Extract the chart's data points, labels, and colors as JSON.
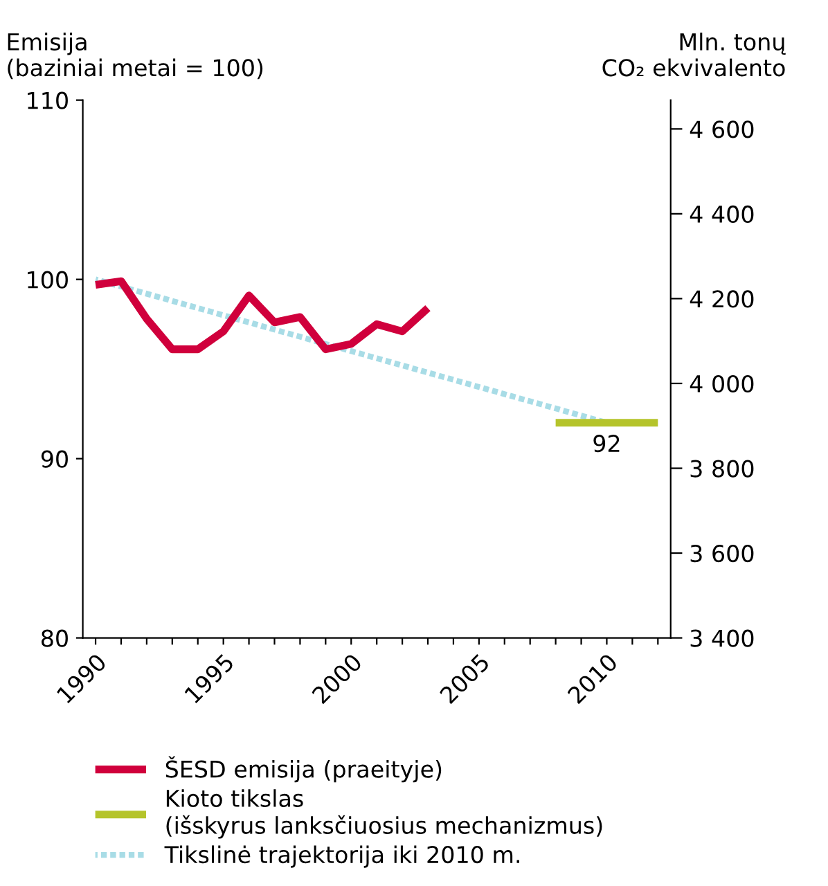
{
  "chart_data": {
    "type": "line",
    "ylabel": "Emisija\n(baziniai metai = 100)",
    "y2label": "Mln. tonų\nCO₂ ekvivalento",
    "xlim": [
      1989.5,
      2012.5
    ],
    "xticks": [
      {
        "value": 1990,
        "label": "1990"
      },
      {
        "value": 1991,
        "label": null
      },
      {
        "value": 1992,
        "label": null
      },
      {
        "value": 1993,
        "label": null
      },
      {
        "value": 1994,
        "label": null
      },
      {
        "value": 1995,
        "label": "1995"
      },
      {
        "value": 1996,
        "label": null
      },
      {
        "value": 1997,
        "label": null
      },
      {
        "value": 1998,
        "label": null
      },
      {
        "value": 1999,
        "label": null
      },
      {
        "value": 2000,
        "label": "2000"
      },
      {
        "value": 2001,
        "label": null
      },
      {
        "value": 2002,
        "label": null
      },
      {
        "value": 2003,
        "label": null
      },
      {
        "value": 2004,
        "label": null
      },
      {
        "value": 2005,
        "label": "2005"
      },
      {
        "value": 2006,
        "label": null
      },
      {
        "value": 2007,
        "label": null
      },
      {
        "value": 2008,
        "label": null
      },
      {
        "value": 2009,
        "label": null
      },
      {
        "value": 2010,
        "label": "2010"
      },
      {
        "value": 2011,
        "label": null
      },
      {
        "value": 2012,
        "label": null
      }
    ],
    "ylim": [
      80,
      110
    ],
    "yticks": [
      80,
      90,
      100,
      110
    ],
    "y2lim": [
      3400,
      4668
    ],
    "y2ticks": [
      {
        "value": 3400,
        "label": "3 400"
      },
      {
        "value": 3600,
        "label": "3 600"
      },
      {
        "value": 3800,
        "label": "3 800"
      },
      {
        "value": 4000,
        "label": "4 000"
      },
      {
        "value": 4200,
        "label": "4 200"
      },
      {
        "value": 4400,
        "label": "4 400"
      },
      {
        "value": 4600,
        "label": "4 600"
      }
    ],
    "series": [
      {
        "name": "ŠESD emisija (praeityje)",
        "color": "#d0003c",
        "line_style": "solid",
        "x": [
          1990,
          1991,
          1992,
          1993,
          1994,
          1995,
          1996,
          1997,
          1998,
          1999,
          2000,
          2001,
          2002,
          2003
        ],
        "values": [
          99.7,
          99.9,
          97.8,
          96.1,
          96.1,
          97.1,
          99.1,
          97.6,
          97.9,
          96.1,
          96.4,
          97.5,
          97.1,
          98.4
        ]
      },
      {
        "name": "Kioto tikslas\n(išskyrus lanksčiuosius mechanizmus)",
        "color": "#b5c42b",
        "line_style": "solid",
        "x": [
          2008,
          2012
        ],
        "values": [
          92,
          92
        ]
      },
      {
        "name": "Tikslinė trajektorija iki 2010 m.",
        "color": "#a8dce6",
        "line_style": "dotted",
        "x": [
          1990,
          2010
        ],
        "values": [
          100,
          92
        ]
      }
    ],
    "annotations": [
      {
        "text": "92",
        "x": 2010,
        "y": 92
      }
    ],
    "grid": false,
    "legend": "bottom"
  }
}
